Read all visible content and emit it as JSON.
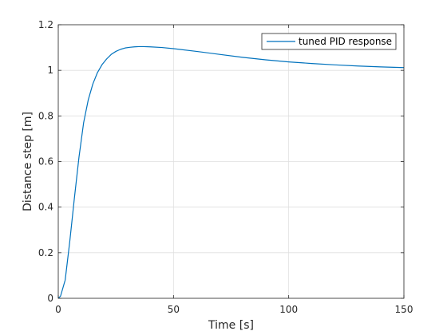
{
  "chart_data": {
    "type": "line",
    "xlabel": "Time [s]",
    "ylabel": "Distance step [m]",
    "xlim": [
      0,
      150
    ],
    "ylim": [
      0,
      1.2
    ],
    "xticks": [
      0,
      50,
      100,
      150
    ],
    "xtick_labels": [
      "0",
      "50",
      "100",
      "150"
    ],
    "yticks": [
      0,
      0.2,
      0.4,
      0.6,
      0.8,
      1.0,
      1.2
    ],
    "ytick_labels": [
      "0",
      "0.2",
      "0.4",
      "0.6",
      "0.8",
      "1",
      "1.2"
    ],
    "grid": true,
    "legend_position": "top-right",
    "series": [
      {
        "name": "tuned PID response",
        "color": "#0072bd",
        "x": [
          0,
          1,
          3,
          5,
          7,
          9,
          11,
          13,
          15,
          17,
          19,
          21,
          23,
          25,
          27,
          29,
          31,
          33,
          35,
          37,
          40,
          45,
          50,
          60,
          70,
          80,
          90,
          100,
          110,
          120,
          130,
          140,
          150
        ],
        "y": [
          0,
          0.01,
          0.08,
          0.25,
          0.44,
          0.62,
          0.77,
          0.87,
          0.94,
          0.99,
          1.025,
          1.05,
          1.07,
          1.083,
          1.092,
          1.098,
          1.101,
          1.103,
          1.104,
          1.104,
          1.103,
          1.1,
          1.095,
          1.083,
          1.07,
          1.057,
          1.046,
          1.037,
          1.03,
          1.024,
          1.019,
          1.015,
          1.012
        ]
      }
    ]
  }
}
